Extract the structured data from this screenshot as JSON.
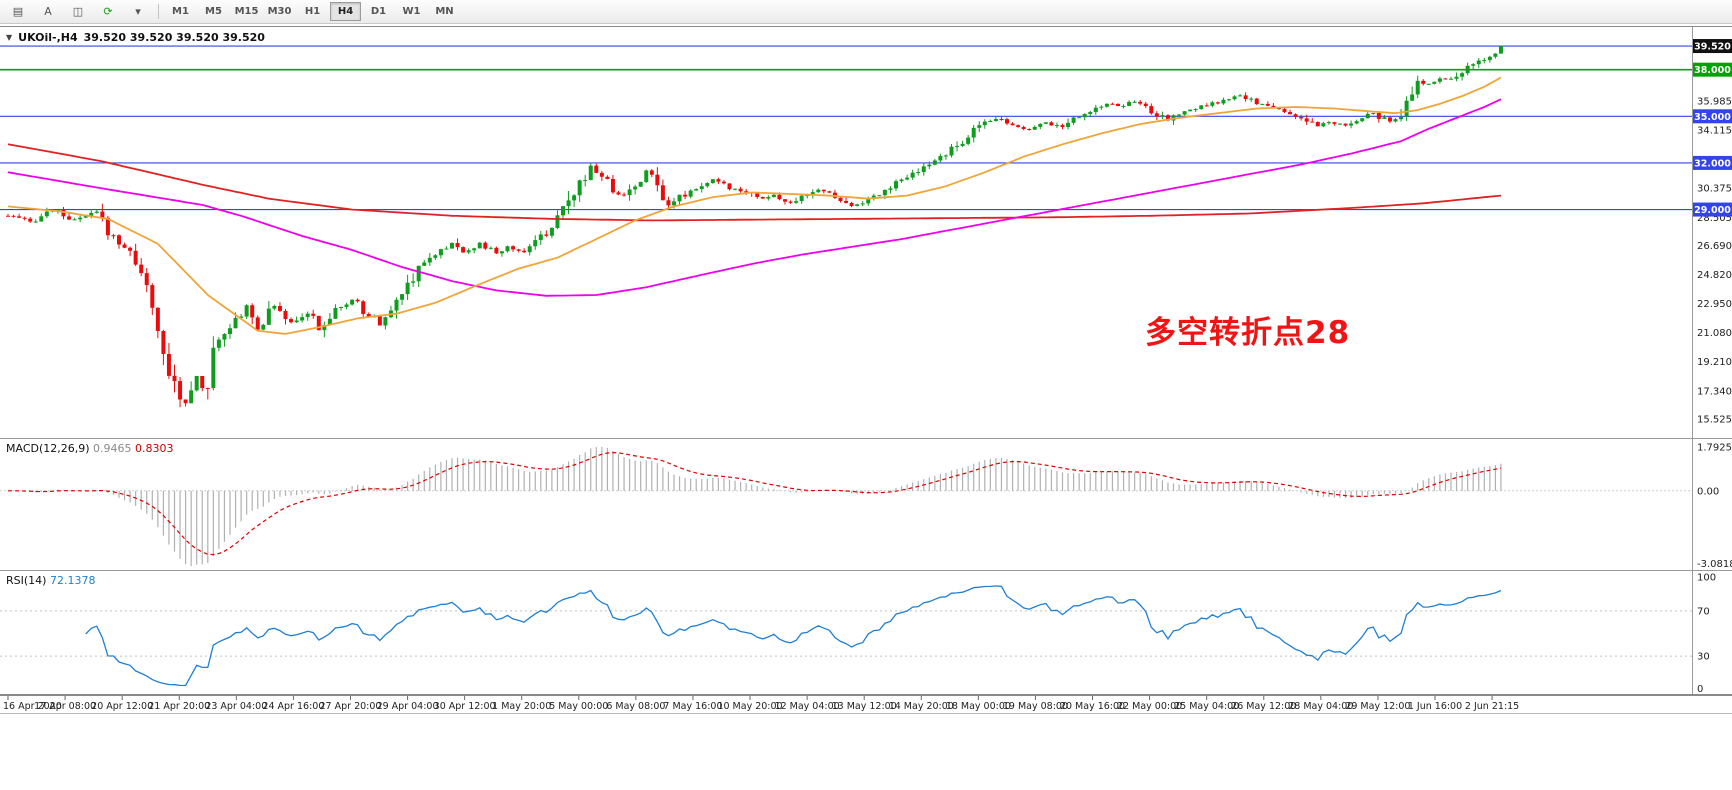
{
  "toolbar": {
    "icons": [
      {
        "name": "chart-list-icon",
        "glyph": "▤"
      },
      {
        "name": "auto-arrange-icon",
        "glyph": "A"
      },
      {
        "name": "tile-windows-icon",
        "glyph": "◫"
      },
      {
        "name": "cycle-chart-icon",
        "glyph": "⟳",
        "color": "#1d9a1d"
      },
      {
        "name": "cycle-chart-caret-icon",
        "glyph": "▾"
      }
    ],
    "timeframes": [
      "M1",
      "M5",
      "M15",
      "M30",
      "H1",
      "H4",
      "D1",
      "W1",
      "MN"
    ],
    "active_timeframe": "H4"
  },
  "main_chart": {
    "collapse_arrow": "▼",
    "legend_symbol": "UKOil-,H4",
    "legend_ohlc": "39.520 39.520 39.520 39.520",
    "annotation": {
      "text": "多空转折点28",
      "color": "#f01414"
    },
    "price_axis_labels": [
      "35.985",
      "34.115",
      "30.375",
      "28.505",
      "26.690",
      "24.820",
      "22.950",
      "21.080",
      "19.210",
      "17.340",
      "15.525"
    ]
  },
  "chart_data": {
    "type": "candlestick",
    "title": "UKOil- H4",
    "x_axis": {
      "first_label": "16 Apr 2020",
      "last_label": "2 Jun 21:15"
    },
    "y_axis": {
      "min": 14.3,
      "max": 40.8
    },
    "candle_count": 270,
    "last_price": 39.52,
    "style": {
      "up_color": "#0f9d1f",
      "down_color": "#ea0c0c"
    },
    "price_waypoints": [
      [
        0,
        28.6
      ],
      [
        4,
        28.2
      ],
      [
        8,
        29.0
      ],
      [
        12,
        28.3
      ],
      [
        16,
        28.8
      ],
      [
        18,
        27.6
      ],
      [
        21,
        26.6
      ],
      [
        24,
        25.2
      ],
      [
        26,
        22.5
      ],
      [
        28,
        19.5
      ],
      [
        30,
        17.8
      ],
      [
        32,
        16.4
      ],
      [
        34,
        18.4
      ],
      [
        36,
        17.1
      ],
      [
        37,
        19.8
      ],
      [
        40,
        21.4
      ],
      [
        43,
        22.9
      ],
      [
        45,
        21.4
      ],
      [
        48,
        22.8
      ],
      [
        51,
        21.8
      ],
      [
        54,
        22.4
      ],
      [
        56,
        21.2
      ],
      [
        59,
        22.5
      ],
      [
        62,
        23.2
      ],
      [
        64,
        22.5
      ],
      [
        67,
        21.6
      ],
      [
        70,
        23.0
      ],
      [
        72,
        24.2
      ],
      [
        74,
        25.4
      ],
      [
        77,
        26.2
      ],
      [
        80,
        26.8
      ],
      [
        82,
        26.3
      ],
      [
        85,
        26.8
      ],
      [
        88,
        26.2
      ],
      [
        90,
        26.6
      ],
      [
        93,
        26.3
      ],
      [
        96,
        27.2
      ],
      [
        99,
        28.3
      ],
      [
        101,
        29.4
      ],
      [
        103,
        30.7
      ],
      [
        105,
        31.8
      ],
      [
        107,
        31.2
      ],
      [
        109,
        30.3
      ],
      [
        111,
        29.9
      ],
      [
        113,
        30.6
      ],
      [
        115,
        31.5
      ],
      [
        117,
        30.6
      ],
      [
        119,
        29.4
      ],
      [
        122,
        30.0
      ],
      [
        125,
        30.6
      ],
      [
        127,
        30.9
      ],
      [
        130,
        30.4
      ],
      [
        133,
        30.2
      ],
      [
        136,
        29.7
      ],
      [
        138,
        29.9
      ],
      [
        141,
        29.4
      ],
      [
        144,
        29.9
      ],
      [
        146,
        30.3
      ],
      [
        149,
        29.8
      ],
      [
        152,
        29.2
      ],
      [
        155,
        29.7
      ],
      [
        158,
        30.3
      ],
      [
        161,
        30.9
      ],
      [
        164,
        31.4
      ],
      [
        166,
        31.9
      ],
      [
        168,
        32.4
      ],
      [
        171,
        33.1
      ],
      [
        173,
        33.8
      ],
      [
        176,
        34.6
      ],
      [
        179,
        34.9
      ],
      [
        181,
        34.4
      ],
      [
        184,
        34.2
      ],
      [
        187,
        34.6
      ],
      [
        190,
        34.3
      ],
      [
        192,
        34.9
      ],
      [
        195,
        35.4
      ],
      [
        198,
        35.8
      ],
      [
        200,
        35.6
      ],
      [
        203,
        36.0
      ],
      [
        206,
        35.3
      ],
      [
        209,
        34.7
      ],
      [
        211,
        35.2
      ],
      [
        214,
        35.5
      ],
      [
        217,
        35.8
      ],
      [
        219,
        36.0
      ],
      [
        222,
        36.3
      ],
      [
        225,
        35.9
      ],
      [
        228,
        35.5
      ],
      [
        230,
        35.3
      ],
      [
        233,
        34.9
      ],
      [
        236,
        34.3
      ],
      [
        238,
        34.6
      ],
      [
        241,
        34.4
      ],
      [
        244,
        34.8
      ],
      [
        246,
        35.2
      ],
      [
        249,
        34.6
      ],
      [
        251,
        34.9
      ],
      [
        252,
        35.8
      ],
      [
        254,
        37.2
      ],
      [
        256,
        37.1
      ],
      [
        258,
        37.5
      ],
      [
        260,
        37.3
      ],
      [
        262,
        37.9
      ],
      [
        264,
        38.3
      ],
      [
        266,
        38.7
      ],
      [
        268,
        39.2
      ],
      [
        269,
        39.5
      ]
    ],
    "moving_averages": [
      {
        "name": "slow-ma-red",
        "color": "#e02222",
        "waypoints": [
          [
            0,
            33.2
          ],
          [
            17,
            32.1
          ],
          [
            35,
            30.6
          ],
          [
            47,
            29.7
          ],
          [
            62,
            29.0
          ],
          [
            80,
            28.6
          ],
          [
            98,
            28.4
          ],
          [
            116,
            28.3
          ],
          [
            134,
            28.35
          ],
          [
            152,
            28.4
          ],
          [
            170,
            28.45
          ],
          [
            188,
            28.5
          ],
          [
            206,
            28.6
          ],
          [
            224,
            28.75
          ],
          [
            242,
            29.1
          ],
          [
            255,
            29.4
          ],
          [
            269,
            29.9
          ]
        ]
      },
      {
        "name": "mid-ma-magenta",
        "color": "#ee00ee",
        "waypoints": [
          [
            0,
            31.4
          ],
          [
            18,
            30.3
          ],
          [
            35,
            29.3
          ],
          [
            42,
            28.6
          ],
          [
            53,
            27.3
          ],
          [
            62,
            26.4
          ],
          [
            71,
            25.3
          ],
          [
            80,
            24.4
          ],
          [
            88,
            23.8
          ],
          [
            97,
            23.45
          ],
          [
            106,
            23.5
          ],
          [
            115,
            24.0
          ],
          [
            125,
            24.8
          ],
          [
            134,
            25.5
          ],
          [
            143,
            26.1
          ],
          [
            152,
            26.6
          ],
          [
            161,
            27.1
          ],
          [
            170,
            27.7
          ],
          [
            179,
            28.3
          ],
          [
            188,
            28.9
          ],
          [
            197,
            29.5
          ],
          [
            206,
            30.1
          ],
          [
            215,
            30.7
          ],
          [
            224,
            31.3
          ],
          [
            233,
            31.9
          ],
          [
            242,
            32.6
          ],
          [
            251,
            33.4
          ],
          [
            256,
            34.2
          ],
          [
            261,
            34.9
          ],
          [
            266,
            35.6
          ],
          [
            269,
            36.1
          ]
        ]
      },
      {
        "name": "fast-ma-orange",
        "color": "#efa538",
        "waypoints": [
          [
            0,
            29.2
          ],
          [
            9,
            28.9
          ],
          [
            18,
            28.4
          ],
          [
            27,
            26.8
          ],
          [
            36,
            23.5
          ],
          [
            45,
            21.2
          ],
          [
            50,
            21.0
          ],
          [
            57,
            21.5
          ],
          [
            63,
            22.0
          ],
          [
            70,
            22.3
          ],
          [
            77,
            23.0
          ],
          [
            85,
            24.2
          ],
          [
            92,
            25.2
          ],
          [
            99,
            25.9
          ],
          [
            106,
            27.1
          ],
          [
            113,
            28.3
          ],
          [
            120,
            29.2
          ],
          [
            127,
            29.8
          ],
          [
            134,
            30.1
          ],
          [
            141,
            30.0
          ],
          [
            148,
            29.9
          ],
          [
            155,
            29.7
          ],
          [
            162,
            29.9
          ],
          [
            169,
            30.5
          ],
          [
            176,
            31.4
          ],
          [
            183,
            32.4
          ],
          [
            190,
            33.2
          ],
          [
            197,
            33.9
          ],
          [
            204,
            34.5
          ],
          [
            211,
            34.9
          ],
          [
            218,
            35.2
          ],
          [
            225,
            35.5
          ],
          [
            232,
            35.6
          ],
          [
            239,
            35.5
          ],
          [
            246,
            35.3
          ],
          [
            250,
            35.2
          ],
          [
            254,
            35.4
          ],
          [
            258,
            35.8
          ],
          [
            262,
            36.3
          ],
          [
            266,
            36.9
          ],
          [
            269,
            37.5
          ]
        ]
      }
    ],
    "hlines": [
      {
        "price": 39.52,
        "label": "39.520",
        "line_color": "#3344ee",
        "badge_color": "#111111"
      },
      {
        "price": 38.0,
        "label": "38.000",
        "line_color": "#00a400",
        "badge_color": "#00a400"
      },
      {
        "price": 35.0,
        "label": "35.000",
        "line_color": "#3344ee",
        "badge_color": "#3344ee"
      },
      {
        "price": 32.0,
        "label": "32.000",
        "line_color": "#3344ee",
        "badge_color": "#3344ee"
      },
      {
        "price": 29.0,
        "label": "29.000",
        "line_color": "#3344ee",
        "badge_color": "#3344ee"
      }
    ]
  },
  "macd": {
    "name": "MACD(12,26,9)",
    "value_main": "0.9465",
    "value_signal": "0.8303",
    "axis_labels": [
      "1.7925",
      "0.00",
      "-3.0818"
    ],
    "axis_max": 1.7925,
    "axis_min": -3.0818,
    "histogram_color": "#b0b0b0",
    "signal_color": "#e00000"
  },
  "rsi": {
    "name": "RSI(14)",
    "value": "72.1378",
    "axis_labels": [
      "100",
      "70",
      "30",
      "0"
    ],
    "levels": [
      70,
      30
    ],
    "line_color": "#1f7fd4"
  },
  "time_axis": {
    "labels": [
      "16 Apr 2020",
      "17 Apr 08:00",
      "20 Apr 12:00",
      "21 Apr 20:00",
      "23 Apr 04:00",
      "24 Apr 16:00",
      "27 Apr 20:00",
      "29 Apr 04:00",
      "30 Apr 12:00",
      "1 May 20:00",
      "5 May 00:00",
      "6 May 08:00",
      "7 May 16:00",
      "10 May 20:00",
      "12 May 04:00",
      "13 May 12:00",
      "14 May 20:00",
      "18 May 00:00",
      "19 May 08:00",
      "20 May 16:00",
      "22 May 00:00",
      "25 May 04:00",
      "26 May 12:00",
      "28 May 04:00",
      "29 May 12:00",
      "1 Jun 16:00",
      "2 Jun 21:15"
    ]
  }
}
